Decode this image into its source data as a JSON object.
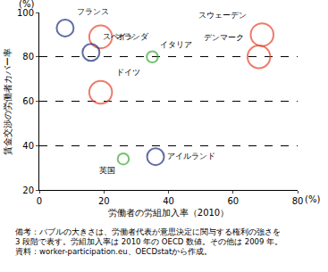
{
  "chart_data": {
    "type": "scatter",
    "marker": "circle-open",
    "x_label": "労働者の労組加入率（2010）",
    "y_label": "賃金交渉の労働者カバー率",
    "x_unit": "(%)",
    "y_unit": "(%)",
    "labels": [
      "フランス",
      "オランダ",
      "スペイン",
      "イタリア",
      "ドイツ",
      "スウェーデン",
      "デンマーク",
      "英国",
      "アイルランド"
    ],
    "x": [
      8,
      19,
      16,
      35,
      19,
      69,
      68,
      26,
      36
    ],
    "values": [
      93,
      89,
      82,
      80,
      64,
      90,
      80,
      34,
      35
    ],
    "sizes": [
      2,
      3,
      2,
      1,
      3,
      3,
      3,
      1,
      2
    ],
    "colors": [
      "#1c2f7a",
      "#e8412c",
      "#1c2f7a",
      "#3aaa35",
      "#e8412c",
      "#e8412c",
      "#e8412c",
      "#3aaa35",
      "#1c2f7a"
    ],
    "xlim": [
      0,
      80
    ],
    "xticks": [
      0,
      20,
      40,
      60,
      80
    ],
    "ylim": [
      20,
      100
    ],
    "yticks": [
      20,
      40,
      60,
      80,
      100
    ],
    "grid": true,
    "notes": [
      "備考：バブルの大きさは、労働者代表が意思決定に関与する権利の強さを",
      "3 段階で表す。労組加入率は 2010 年の OECD 数値。その他は 2009 年。",
      "資料：worker-participation.eu、OECDstatから作成。"
    ]
  }
}
